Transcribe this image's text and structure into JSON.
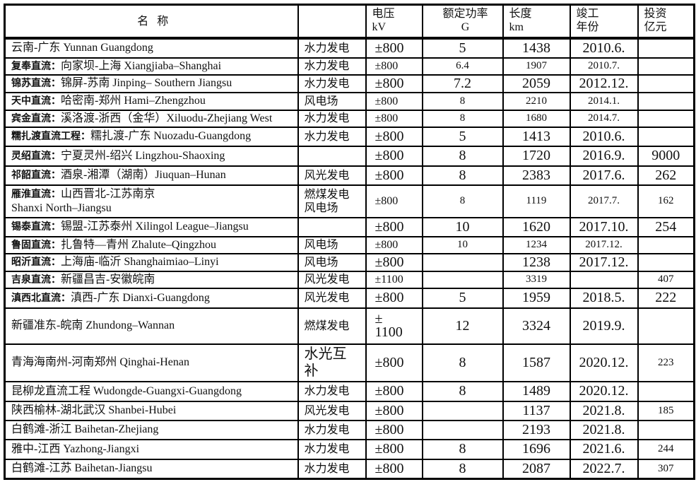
{
  "header": {
    "name": "名 称",
    "type": "",
    "voltage": [
      "电压",
      "kV"
    ],
    "power": [
      "额定功率",
      "G"
    ],
    "length": [
      "长度",
      "km"
    ],
    "year": [
      "竣工",
      "年份"
    ],
    "investment": [
      "投资",
      "亿元"
    ]
  },
  "rows": [
    {
      "prefix": "",
      "name": "云南-广东 Yunnan Guangdong",
      "type": "水力发电",
      "voltage": "±800",
      "power": "5",
      "length": "1438",
      "year": "2010.6.",
      "investment": ""
    },
    {
      "prefix": "复奉直流：",
      "name": "向家坝-上海 Xiangjiaba–Shanghai",
      "type": "水力发电",
      "voltage": "±800",
      "power": "6.4",
      "length": "1907",
      "year": "2010.7.",
      "investment": ""
    },
    {
      "prefix": "锦苏直流：",
      "name": "锦屏-苏南 Jinping– Southern Jiangsu",
      "type": "水力发电",
      "voltage": "±800",
      "power": "7.2",
      "length": "2059",
      "year": "2012.12.",
      "investment": ""
    },
    {
      "prefix": "天中直流：",
      "name": "哈密南-郑州 Hami–Zhengzhou",
      "type": "风电场",
      "voltage": "±800",
      "power": "8",
      "length": "2210",
      "year": "2014.1.",
      "investment": ""
    },
    {
      "prefix": "宾金直流：",
      "name": "溪洛渡-浙西（金华）Xiluodu-Zhejiang West",
      "type": "水力发电",
      "voltage": "±800",
      "power": "8",
      "length": "1680",
      "year": "2014.7.",
      "investment": ""
    },
    {
      "prefix": "糯扎渡直流工程：",
      "name": "糯扎渡-广东 Nuozadu-Guangdong",
      "type": "水力发电",
      "voltage": "±800",
      "power": "5",
      "length": "1413",
      "year": "2010.6.",
      "investment": ""
    },
    {
      "prefix": "灵绍直流：",
      "name": "宁夏灵州-绍兴 Lingzhou-Shaoxing",
      "type": "",
      "voltage": "±800",
      "power": "8",
      "length": "1720",
      "year": "2016.9.",
      "investment": "9000"
    },
    {
      "prefix": "祁韶直流：",
      "name": "酒泉-湘潭（湖南）Jiuquan–Hunan",
      "type": "风光发电",
      "voltage": "±800",
      "power": "8",
      "length": "2383",
      "year": "2017.6.",
      "investment": "262"
    },
    {
      "prefix": "雁淮直流：",
      "name": "山西晋北-江苏南京\nShanxi North–Jiangsu",
      "type": "燃煤发电\n风电场",
      "voltage": "±800",
      "power": "8",
      "length": "1119",
      "year": "2017.7.",
      "investment": "162"
    },
    {
      "prefix": "锡泰直流：",
      "name": "锡盟-江苏泰州 Xilingol League–Jiangsu",
      "type": "",
      "voltage": "±800",
      "power": "10",
      "length": "1620",
      "year": "2017.10.",
      "investment": "254"
    },
    {
      "prefix": "鲁固直流：",
      "name": "扎鲁特—青州 Zhalute–Qingzhou",
      "type": "风电场",
      "voltage": "±800",
      "power": "10",
      "length": "1234",
      "year": "2017.12.",
      "investment": ""
    },
    {
      "prefix": "昭沂直流：",
      "name": "上海庙-临沂 Shanghaimiao–Linyi",
      "type": "风电场",
      "voltage": "±800",
      "power": "",
      "length": "1238",
      "year": "2017.12.",
      "investment": ""
    },
    {
      "prefix": "吉泉直流：",
      "name": "新疆昌吉-安徽皖南",
      "type": "风光发电",
      "voltage": "±1100",
      "power": "",
      "length": "3319",
      "year": "",
      "investment": "407"
    },
    {
      "prefix": "滇西北直流：",
      "name": "滇西-广东 Dianxi-Guangdong",
      "type": "风光发电",
      "voltage": "±800",
      "power": "5",
      "length": "1959",
      "year": "2018.5.",
      "investment": "222"
    },
    {
      "prefix": "",
      "name": "新疆准东-皖南 Zhundong–Wannan",
      "type": "燃煤发电",
      "voltage": "±\n1100",
      "power": "12",
      "length": "3324",
      "year": "2019.9.",
      "investment": ""
    },
    {
      "prefix": "",
      "name": "青海海南州-河南郑州 Qinghai-Henan",
      "type": "水光互\n补",
      "voltage": "±800",
      "power": "8",
      "length": "1587",
      "year": "2020.12.",
      "investment": "223"
    },
    {
      "prefix": "",
      "name": "昆柳龙直流工程 Wudongde-Guangxi-Guangdong",
      "type": "水力发电",
      "voltage": "±800",
      "power": "8",
      "length": "1489",
      "year": "2020.12.",
      "investment": ""
    },
    {
      "prefix": "",
      "name": "陕西榆林-湖北武汉 Shanbei-Hubei",
      "type": "风光发电",
      "voltage": "±800",
      "power": "",
      "length": "1137",
      "year": "2021.8.",
      "investment": "185"
    },
    {
      "prefix": "",
      "name": "白鹤滩-浙江 Baihetan-Zhejiang",
      "type": "水力发电",
      "voltage": "±800",
      "power": "",
      "length": "2193",
      "year": "2021.8.",
      "investment": ""
    },
    {
      "prefix": "",
      "name": "雅中-江西 Yazhong-Jiangxi",
      "type": "水力发电",
      "voltage": "±800",
      "power": "8",
      "length": "1696",
      "year": "2021.6.",
      "investment": "244"
    },
    {
      "prefix": "",
      "name": "白鹤滩-江苏 Baihetan-Jiangsu",
      "type": "水力发电",
      "voltage": "±800",
      "power": "8",
      "length": "2087",
      "year": "2022.7.",
      "investment": "307"
    }
  ]
}
